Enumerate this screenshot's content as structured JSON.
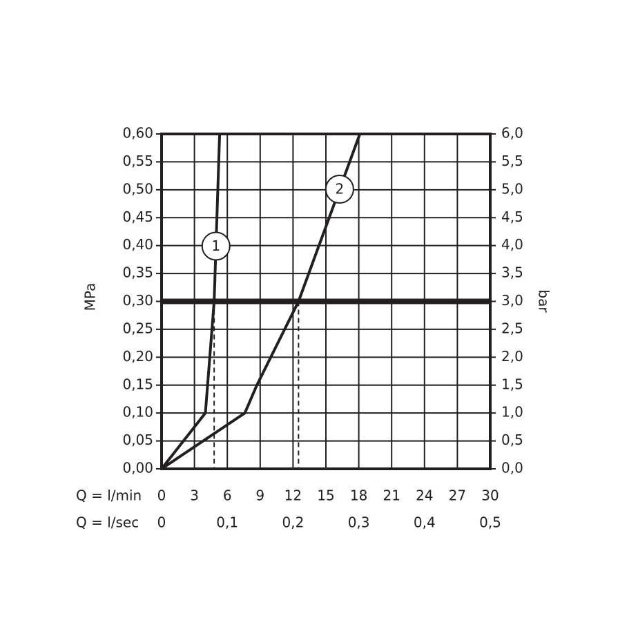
{
  "chart_data": {
    "type": "line",
    "x_label": "Q = l/min",
    "x2_label": "Q = l/sec",
    "y_label": "MPa",
    "y2_label": "bar",
    "xlim": [
      0,
      30
    ],
    "xticks": [
      0,
      3,
      6,
      9,
      12,
      15,
      18,
      21,
      24,
      27,
      30
    ],
    "x2lim": [
      0,
      0.5
    ],
    "x2ticks": [
      0,
      {
        "value": 0.1,
        "label": "0,1"
      },
      {
        "value": 0.2,
        "label": "0,2"
      },
      {
        "value": 0.3,
        "label": "0,3"
      },
      {
        "value": 0.4,
        "label": "0,4"
      },
      {
        "value": 0.5,
        "label": "0,5"
      }
    ],
    "ylim": [
      0,
      0.6
    ],
    "yticks": [
      {
        "value": 0,
        "label": "0,00"
      },
      {
        "value": 0.05,
        "label": "0,05"
      },
      {
        "value": 0.1,
        "label": "0,10"
      },
      {
        "value": 0.15,
        "label": "0,15"
      },
      {
        "value": 0.2,
        "label": "0,20"
      },
      {
        "value": 0.25,
        "label": "0,25"
      },
      {
        "value": 0.3,
        "label": "0,30"
      },
      {
        "value": 0.35,
        "label": "0,35"
      },
      {
        "value": 0.4,
        "label": "0,40"
      },
      {
        "value": 0.45,
        "label": "0,45"
      },
      {
        "value": 0.5,
        "label": "0,50"
      },
      {
        "value": 0.55,
        "label": "0,55"
      },
      {
        "value": 0.6,
        "label": "0,60"
      }
    ],
    "y2lim": [
      0,
      6
    ],
    "y2ticks": [
      {
        "value": 0,
        "label": "0,0"
      },
      {
        "value": 0.5,
        "label": "0,5"
      },
      {
        "value": 1,
        "label": "1,0"
      },
      {
        "value": 1.5,
        "label": "1,5"
      },
      {
        "value": 2,
        "label": "2,0"
      },
      {
        "value": 2.5,
        "label": "2,5"
      },
      {
        "value": 3,
        "label": "3,0"
      },
      {
        "value": 3.5,
        "label": "3,5"
      },
      {
        "value": 4,
        "label": "4,0"
      },
      {
        "value": 4.5,
        "label": "4,5"
      },
      {
        "value": 5,
        "label": "5,0"
      },
      {
        "value": 5.5,
        "label": "5,5"
      },
      {
        "value": 6,
        "label": "6,0"
      }
    ],
    "grid": true,
    "hline": 0.3,
    "drop_lines": [
      4.8,
      12.5
    ],
    "series": [
      {
        "name": "1",
        "color": "#231f20",
        "x": [
          0,
          4.0,
          4.8,
          5.3
        ],
        "values": [
          0,
          0.1,
          0.3,
          0.6
        ]
      },
      {
        "name": "2",
        "color": "#231f20",
        "x": [
          0,
          7.6,
          8.7,
          12.5,
          18.1
        ],
        "values": [
          0,
          0.1,
          0.15,
          0.3,
          0.6
        ]
      }
    ]
  }
}
